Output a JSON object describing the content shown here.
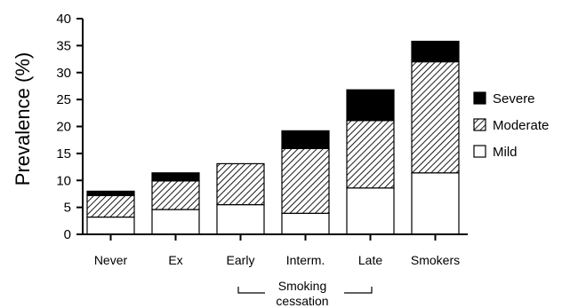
{
  "chart_data": {
    "type": "bar",
    "stacked": true,
    "ylabel": "Prevalence  (%)",
    "xlabel": "",
    "ylim": [
      0,
      40
    ],
    "yticks": [
      0,
      5,
      10,
      15,
      20,
      25,
      30,
      35,
      40
    ],
    "categories": [
      "Never",
      "Ex",
      "Early",
      "Interm.",
      "Late",
      "Smokers"
    ],
    "series": [
      {
        "name": "Mild",
        "values": [
          3.2,
          4.6,
          5.5,
          3.9,
          8.6,
          11.4
        ]
      },
      {
        "name": "Moderate",
        "values": [
          4.0,
          5.3,
          7.6,
          12.0,
          12.5,
          20.6
        ]
      },
      {
        "name": "Severe",
        "values": [
          0.8,
          1.5,
          0.0,
          3.3,
          5.7,
          3.8
        ]
      }
    ],
    "legend": {
      "placement": "right",
      "order": [
        "Severe",
        "Moderate",
        "Mild"
      ]
    },
    "colors": {
      "Mild": "#ffffff",
      "Moderate": "hatched",
      "Severe": "#000000"
    },
    "annotation": {
      "text_line1": "Smoking",
      "text_line2": "cessation",
      "spans": [
        "Early",
        "Interm.",
        "Late"
      ]
    },
    "grid": false
  }
}
